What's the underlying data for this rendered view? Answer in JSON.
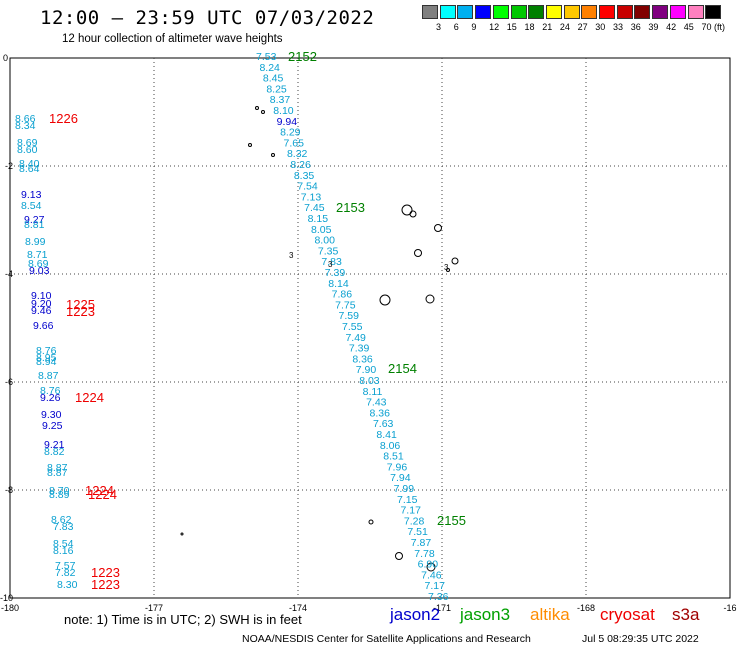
{
  "title": "12:00 – 23:59 UTC 07/03/2022",
  "subtitle": "12 hour collection of altimeter wave heights",
  "colorbar": {
    "colors": [
      "#808080",
      "#00ffff",
      "#00b0f0",
      "#0000ff",
      "#00ff00",
      "#00c800",
      "#008000",
      "#ffff00",
      "#ffc800",
      "#ff8000",
      "#ff0000",
      "#c80000",
      "#800000",
      "#800080",
      "#ff00ff",
      "#ff80c0",
      "#000000"
    ],
    "labels": [
      "3",
      "6",
      "9",
      "12",
      "15",
      "18",
      "21",
      "24",
      "27",
      "30",
      "33",
      "36",
      "39",
      "42",
      "45",
      "70 (ft)"
    ]
  },
  "axes": {
    "x_ticks": [
      "-180",
      "-177",
      "-174",
      "-171",
      "-168",
      "-16"
    ],
    "y_ticks": [
      "0",
      "-2",
      "-4",
      "-6",
      "-8",
      "-10"
    ]
  },
  "tracks": [
    {
      "name": "jason3",
      "color": "#0aa0d0",
      "labels": [
        "7.53",
        "8.24",
        "8.45",
        "8.25",
        "8.37",
        "8.10"
      ]
    },
    {
      "name": "jason2",
      "color": "#0000cc",
      "labels": [
        "9.94"
      ]
    },
    {
      "name": "jason3",
      "color": "#0aa0d0",
      "labels": [
        "8.29",
        "7.65",
        "8.32",
        "8.26",
        "8.35",
        "7.54",
        "7.13",
        "7.45",
        "8.15",
        "8.05",
        "8.00",
        "7.35",
        "7.83",
        "7.39",
        "8.14",
        "7.86",
        "7.75",
        "7.59",
        "7.55",
        "7.49",
        "7.39",
        "8.36",
        "7.90",
        "8.03",
        "8.11",
        "7.43",
        "8.36",
        "7.63",
        "8.41",
        "8.06",
        "8.51",
        "7.96",
        "7.94",
        "7.99",
        "7.15",
        "7.17",
        "7.28",
        "7.51",
        "7.87",
        "7.78",
        "6.90",
        "7.46",
        "7.17",
        "7.36"
      ]
    }
  ],
  "left_labels": [
    {
      "text": "8.66",
      "color": "#0aa0d0"
    },
    {
      "text": "8.34",
      "color": "#0aa0d0"
    },
    {
      "text": "8.69",
      "color": "#0aa0d0"
    },
    {
      "text": "8.60",
      "color": "#0aa0d0"
    },
    {
      "text": "8.40",
      "color": "#0aa0d0"
    },
    {
      "text": "8.64",
      "color": "#0aa0d0"
    },
    {
      "text": "9.13",
      "color": "#0000cc"
    },
    {
      "text": "8.54",
      "color": "#0aa0d0"
    },
    {
      "text": "9.27",
      "color": "#0000cc"
    },
    {
      "text": "8.81",
      "color": "#0aa0d0"
    },
    {
      "text": "8.99",
      "color": "#0aa0d0"
    },
    {
      "text": "8.71",
      "color": "#0aa0d0"
    },
    {
      "text": "8.69",
      "color": "#0aa0d0"
    },
    {
      "text": "9.03",
      "color": "#0000cc"
    },
    {
      "text": "9.10",
      "color": "#0000cc"
    },
    {
      "text": "9.20",
      "color": "#0000cc"
    },
    {
      "text": "9.46",
      "color": "#0000cc"
    },
    {
      "text": "9.66",
      "color": "#0000cc"
    },
    {
      "text": "8.76",
      "color": "#0aa0d0"
    },
    {
      "text": "8.95",
      "color": "#0aa0d0"
    },
    {
      "text": "8.94",
      "color": "#0aa0d0"
    },
    {
      "text": "8.87",
      "color": "#0aa0d0"
    },
    {
      "text": "8.76",
      "color": "#0aa0d0"
    },
    {
      "text": "9.26",
      "color": "#0000cc"
    },
    {
      "text": "9.30",
      "color": "#0000cc"
    },
    {
      "text": "9.25",
      "color": "#0000cc"
    },
    {
      "text": "9.21",
      "color": "#0000cc"
    },
    {
      "text": "8.82",
      "color": "#0aa0d0"
    },
    {
      "text": "8.87",
      "color": "#0aa0d0"
    },
    {
      "text": "8.87",
      "color": "#0aa0d0"
    },
    {
      "text": "8.70",
      "color": "#0aa0d0"
    },
    {
      "text": "8.89",
      "color": "#0aa0d0"
    },
    {
      "text": "8.62",
      "color": "#0aa0d0"
    },
    {
      "text": "7.83",
      "color": "#0aa0d0"
    },
    {
      "text": "8.54",
      "color": "#0aa0d0"
    },
    {
      "text": "8.16",
      "color": "#0aa0d0"
    },
    {
      "text": "7.57",
      "color": "#0aa0d0"
    },
    {
      "text": "7.82",
      "color": "#0aa0d0"
    },
    {
      "text": "8.30",
      "color": "#0aa0d0"
    }
  ],
  "time_labels": [
    {
      "text": "2152",
      "color": "#008000"
    },
    {
      "text": "2153",
      "color": "#008000"
    },
    {
      "text": "2154",
      "color": "#008000"
    },
    {
      "text": "2155",
      "color": "#008000"
    },
    {
      "text": "1226",
      "color": "#ee0000"
    },
    {
      "text": "1225",
      "color": "#ee0000"
    },
    {
      "text": "1223",
      "color": "#ee0000"
    },
    {
      "text": "1224",
      "color": "#ee0000"
    },
    {
      "text": "1224",
      "color": "#ee0000"
    },
    {
      "text": "1224",
      "color": "#ee0000"
    },
    {
      "text": "1223",
      "color": "#ee0000"
    },
    {
      "text": "1223",
      "color": "#ee0000"
    }
  ],
  "stray_labels": [
    {
      "text": "3",
      "color": "#000000"
    },
    {
      "text": "3",
      "color": "#000000"
    },
    {
      "text": "3",
      "color": "#000000"
    }
  ],
  "note": "note: 1) Time is in UTC; 2) SWH is in feet",
  "satellites": [
    {
      "name": "jason2",
      "color": "#0000cc"
    },
    {
      "name": "jason3",
      "color": "#00a000"
    },
    {
      "name": "altika",
      "color": "#ff8c00"
    },
    {
      "name": "cryosat",
      "color": "#ee0000"
    },
    {
      "name": "s3a",
      "color": "#a00000"
    }
  ],
  "credit": "NOAA/NESDIS Center for Satellite Applications and Research",
  "timestamp": "Jul  5 08:29:35 UTC 2022"
}
